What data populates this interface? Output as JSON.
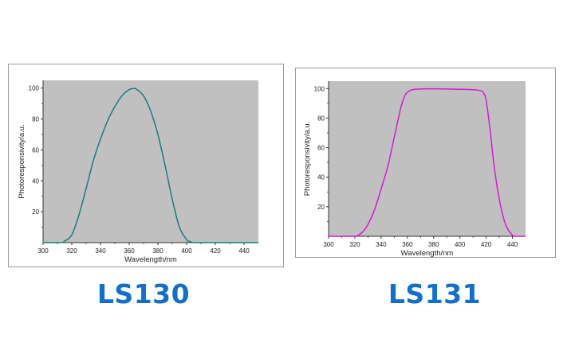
{
  "chart_data": [
    {
      "type": "line",
      "model_label": "LS130",
      "xlabel": "Wavelength/nm",
      "ylabel": "Photoresponsivity/a.u.",
      "xlim": [
        300,
        450
      ],
      "ylim": [
        0,
        105
      ],
      "x_ticks": [
        300,
        320,
        340,
        360,
        380,
        400,
        420,
        440
      ],
      "y_ticks": [
        20,
        40,
        60,
        80,
        100
      ],
      "background": "#c0c0c0",
      "line_color": "#157f7a",
      "grid": false,
      "series": [
        {
          "x": [
            300,
            312,
            315,
            320,
            325,
            330,
            335,
            340,
            345,
            350,
            355,
            360,
            363,
            365,
            370,
            375,
            380,
            385,
            390,
            395,
            400,
            402,
            405,
            410,
            420,
            450
          ],
          "y": [
            0,
            0,
            1,
            5,
            18,
            35,
            53,
            67,
            79,
            88,
            95,
            99,
            99.7,
            99.3,
            95,
            85,
            70,
            50,
            28,
            10,
            2,
            0.8,
            0,
            0,
            0,
            0
          ]
        }
      ]
    },
    {
      "type": "line",
      "model_label": "LS131",
      "xlabel": "Wavelength/nm",
      "ylabel": "Photoresponsivity/a.u.",
      "xlim": [
        300,
        450
      ],
      "ylim": [
        0,
        105
      ],
      "x_ticks": [
        300,
        320,
        340,
        360,
        380,
        400,
        420,
        440
      ],
      "y_ticks": [
        20,
        40,
        60,
        80,
        100
      ],
      "background": "#c0c0c0",
      "line_color": "#d61ad6",
      "grid": false,
      "series": [
        {
          "x": [
            300,
            320,
            322,
            326,
            330,
            335,
            340,
            345,
            350,
            355,
            358,
            360,
            363,
            368,
            380,
            400,
            410,
            416,
            418,
            420,
            423,
            426,
            430,
            434,
            437,
            440,
            442,
            450
          ],
          "y": [
            0,
            0,
            0.5,
            3,
            8,
            18,
            32,
            47,
            67,
            87,
            95,
            97.5,
            99,
            99.6,
            99.8,
            99.5,
            99.2,
            98.5,
            97,
            92,
            72,
            48,
            25,
            10,
            4,
            0.8,
            0,
            0
          ]
        }
      ]
    }
  ]
}
